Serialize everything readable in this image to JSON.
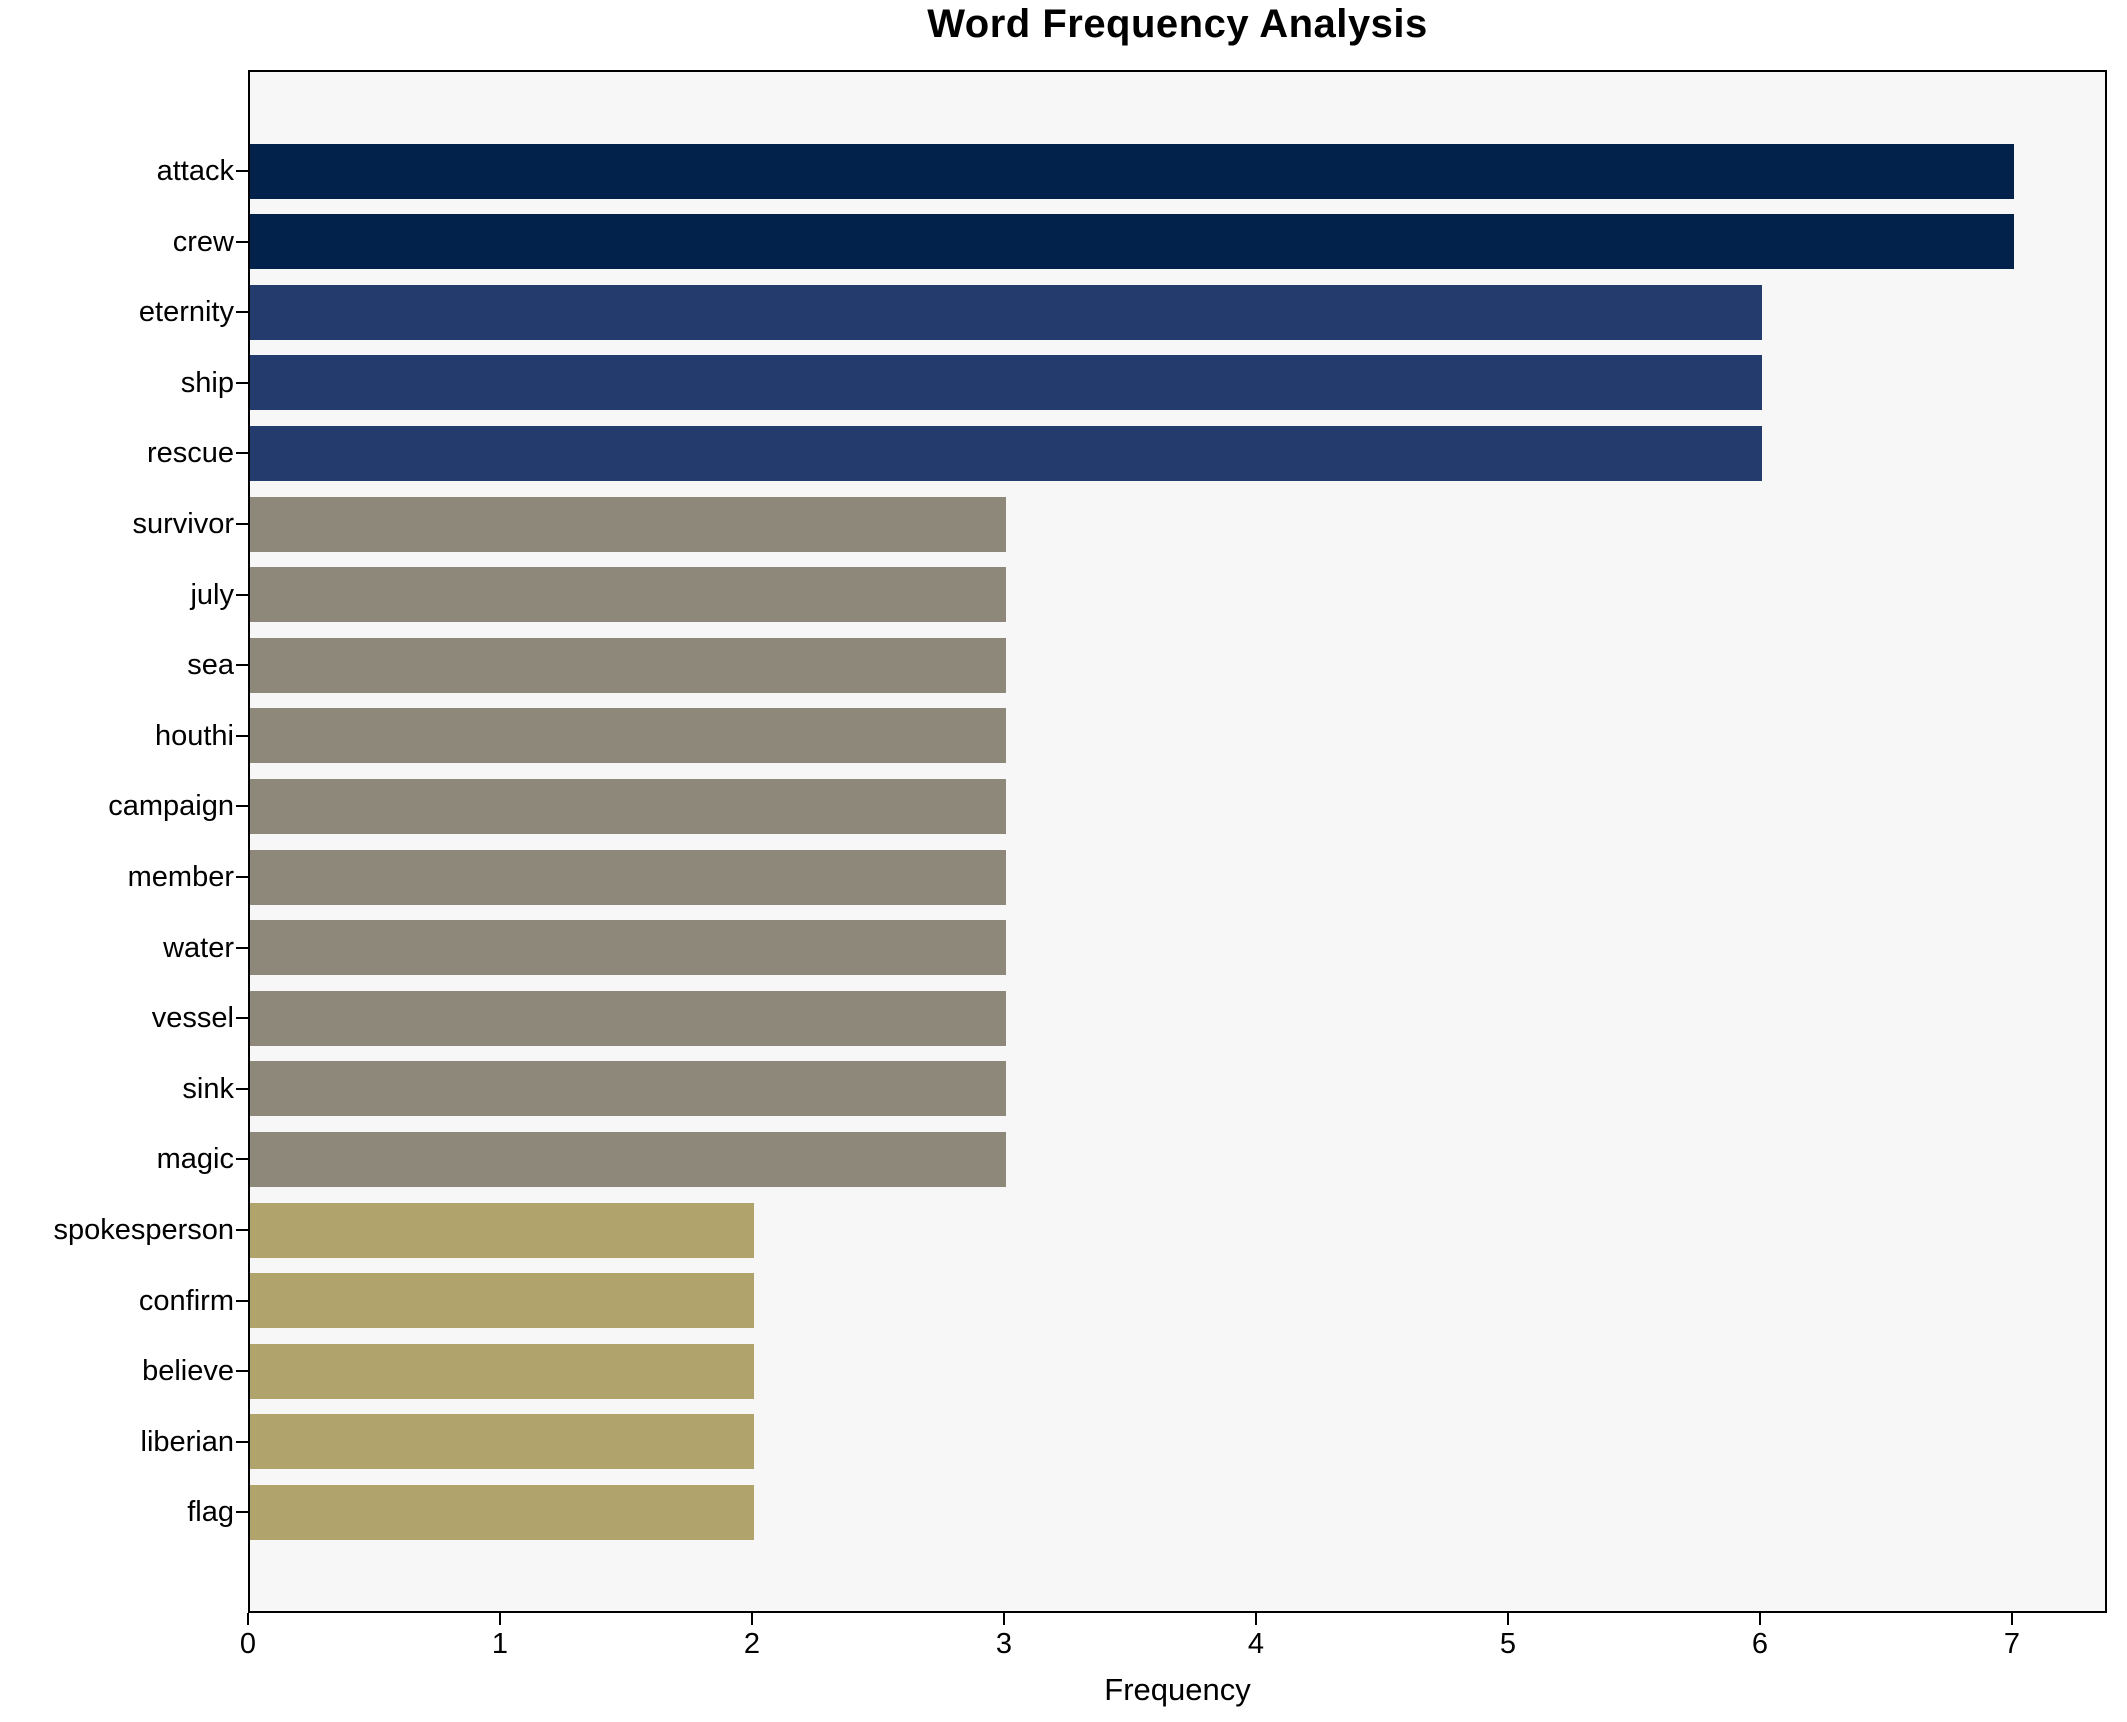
{
  "chart_data": {
    "type": "bar",
    "orientation": "horizontal",
    "title": "Word Frequency Analysis",
    "xlabel": "Frequency",
    "ylabel": "",
    "categories": [
      "attack",
      "crew",
      "eternity",
      "ship",
      "rescue",
      "survivor",
      "july",
      "sea",
      "houthi",
      "campaign",
      "member",
      "water",
      "vessel",
      "sink",
      "magic",
      "spokesperson",
      "confirm",
      "believe",
      "liberian",
      "flag"
    ],
    "values": [
      7,
      7,
      6,
      6,
      6,
      3,
      3,
      3,
      3,
      3,
      3,
      3,
      3,
      3,
      3,
      2,
      2,
      2,
      2,
      2
    ],
    "xticks": [
      "0",
      "1",
      "2",
      "3",
      "4",
      "5",
      "6",
      "7"
    ],
    "xlim": [
      0,
      7.38
    ],
    "grid": false,
    "legend": "none",
    "colors": {
      "value_7": "#02224c",
      "value_6": "#243c6d",
      "value_3": "#8e887a",
      "value_2": "#b0a46c",
      "plot_background": "#f7f7f8",
      "figure_background": "#ffffff",
      "spine": "#000000",
      "text": "#000000"
    }
  }
}
